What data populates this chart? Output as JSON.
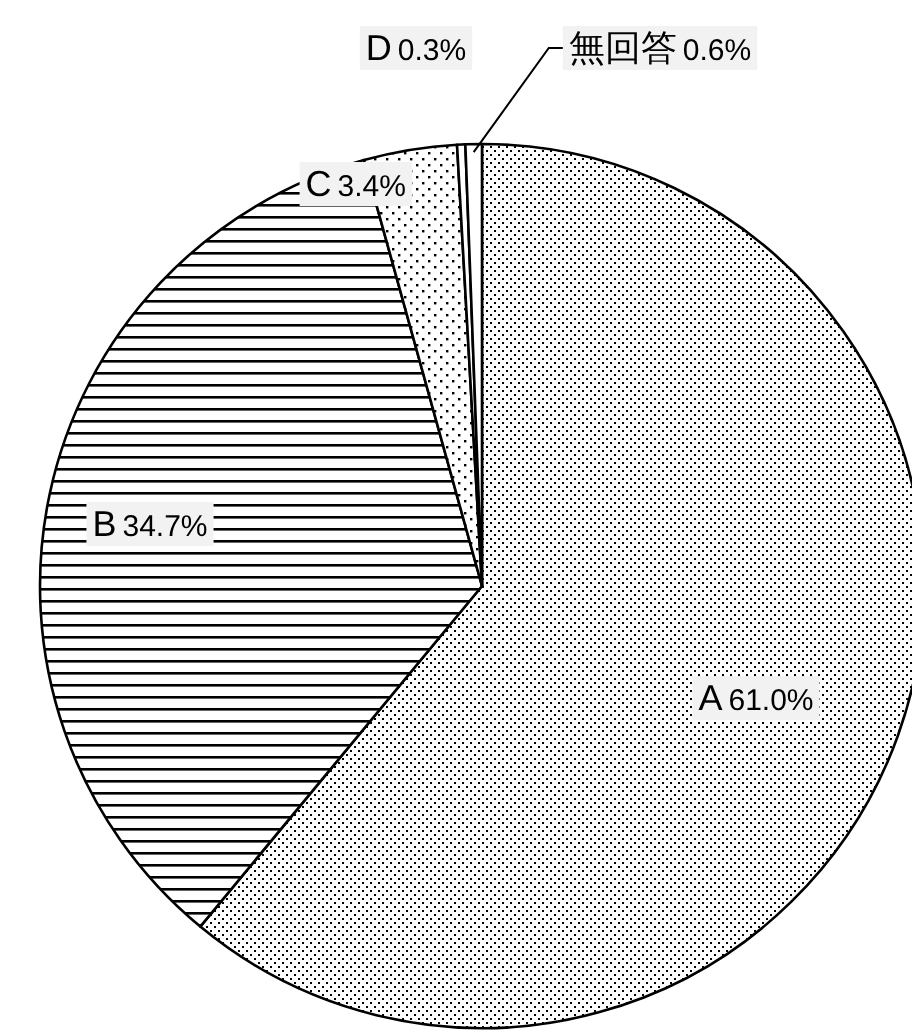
{
  "chart_data": {
    "type": "pie",
    "categories": [
      "A",
      "B",
      "C",
      "D",
      "無回答"
    ],
    "values": [
      61.0,
      34.7,
      3.4,
      0.3,
      0.6
    ],
    "value_labels": [
      "61.0%",
      "34.7%",
      "3.4%",
      "0.3%",
      "0.6%"
    ],
    "colors": [
      "#000000",
      "#000000",
      "#000000",
      "#ffffff",
      "#ffffff"
    ]
  }
}
